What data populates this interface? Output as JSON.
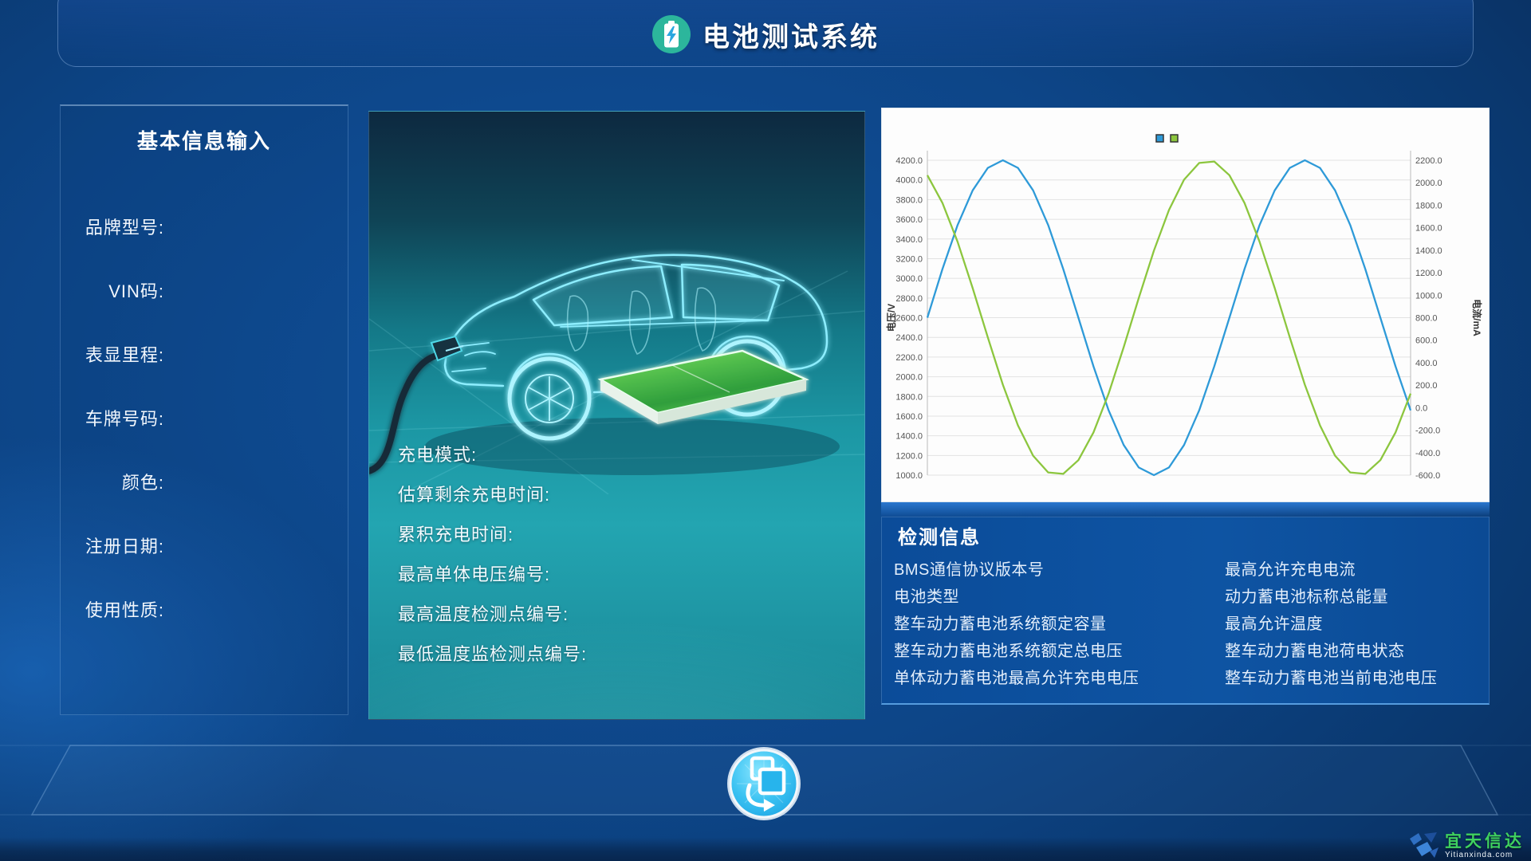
{
  "app": {
    "title": "电池测试系统"
  },
  "basic_info": {
    "title": "基本信息输入",
    "fields": [
      "品牌型号:",
      "VIN码:",
      "表显里程:",
      "车牌号码:",
      "颜色:",
      "注册日期:",
      "使用性质:"
    ]
  },
  "charging_info": {
    "labels": [
      "充电模式:",
      "估算剩余充电时间:",
      "累积充电时间:",
      "最高单体电压编号:",
      "最高温度检测点编号:",
      "最低温度监检测点编号:"
    ]
  },
  "chart_data": {
    "type": "line",
    "title": "",
    "x": [
      0,
      1,
      2,
      3,
      4,
      5,
      6,
      7,
      8,
      9,
      10,
      11,
      12,
      13,
      14,
      15,
      16,
      17,
      18,
      19,
      20,
      21,
      22,
      23,
      24,
      25,
      26,
      27,
      28,
      29,
      30,
      31,
      32
    ],
    "series": [
      {
        "name": "voltage",
        "axis": "left",
        "color": "#2e9ad8",
        "values": [
          2600,
          3094,
          3541,
          3894,
          4122,
          4200,
          4122,
          3894,
          3541,
          3094,
          2600,
          2106,
          1659,
          1306,
          1078,
          1000,
          1078,
          1306,
          1659,
          2106,
          2600,
          3094,
          3541,
          3894,
          4122,
          4200,
          4122,
          3894,
          3541,
          3094,
          2600,
          2106,
          1659
        ]
      },
      {
        "name": "current",
        "axis": "right",
        "color": "#8cc63e",
        "values": [
          2067,
          1820,
          1475,
          1063,
          625,
          204,
          -158,
          -427,
          -576,
          -589,
          -467,
          -220,
          125,
          538,
          975,
          1396,
          1758,
          2027,
          2176,
          2189,
          2067,
          1820,
          1475,
          1063,
          625,
          204,
          -158,
          -427,
          -576,
          -589,
          -467,
          -220,
          125
        ]
      }
    ],
    "y_axis_left": {
      "label": "电压/V",
      "min": 1000,
      "max": 4200,
      "step": 200,
      "tick_format": "0.1f"
    },
    "y_axis_right": {
      "label": "电流/mA",
      "min": -600,
      "max": 2200,
      "step": 200,
      "tick_format": "0.1f"
    },
    "grid": "horizontal",
    "legend_position": "top-center",
    "legend_markers": [
      {
        "color": "#2e9ad8"
      },
      {
        "color": "#8cc63e"
      }
    ]
  },
  "detection_info": {
    "title": "检测信息",
    "left_column": [
      "BMS通信协议版本号",
      "电池类型",
      "整车动力蓄电池系统额定容量",
      "整车动力蓄电池系统额定总电压",
      "单体动力蓄电池最高允许充电电压"
    ],
    "right_column": [
      "最高允许充电电流",
      "动力蓄电池标称总能量",
      "最高允许温度",
      "整车动力蓄电池荷电状态",
      "整车动力蓄电池当前电池电压"
    ]
  },
  "watermark": {
    "name": "宜天信达",
    "domain": "Yitianxinda.com"
  },
  "colors": {
    "header_icon_bg": "#2cb69c",
    "bolt": "#2aa7e0",
    "curve_blue": "#2e9ad8",
    "curve_green": "#8cc63e",
    "detect_panel": "#0d52a0",
    "button_cyan": "#2fc3f2",
    "watermark_green": "#3fd15f",
    "car_outline": "#8deeff",
    "battery_green": "#4db848"
  }
}
